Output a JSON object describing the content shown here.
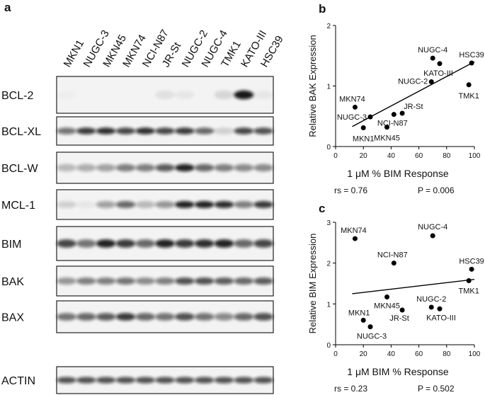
{
  "panel_labels": [
    "a",
    "b",
    "c"
  ],
  "blot": {
    "cell_lines": [
      "MKN1",
      "NUGC-3",
      "MKN45",
      "MKN74",
      "NCI-N87",
      "JR-St",
      "NUGC-2",
      "NUGC-4",
      "TMK1",
      "KATO-III",
      "HSC39"
    ],
    "proteins": [
      "BCL-2",
      "BCL-XL",
      "BCL-W",
      "MCL-1",
      "BIM",
      "BAK",
      "BAX",
      "ACTIN"
    ]
  },
  "chart_data": [
    {
      "type": "scatter",
      "xlabel": "1 μM % BIM Response",
      "ylabel": "Relative BAK Expression",
      "stats": [
        "rs = 0.76",
        "P = 0.006"
      ],
      "x": [
        20,
        25,
        37,
        14,
        42,
        48,
        69,
        70,
        96,
        75,
        98
      ],
      "values": [
        0.31,
        0.49,
        0.32,
        0.65,
        0.53,
        0.55,
        1.07,
        1.46,
        1.02,
        1.37,
        1.38
      ],
      "point_labels": [
        "MKN1",
        "NUGC-3",
        "MKN45",
        "MKN74",
        "NCI-N87",
        "JR-St",
        "NUGC-2",
        "NUGC-4",
        "TMK1",
        "KATO-III",
        "HSC39"
      ],
      "color": "#000000",
      "fit": {
        "x": [
          12,
          100
        ],
        "y": [
          0.33,
          1.4
        ]
      },
      "xlim": [
        0,
        100
      ],
      "xticks": [
        0,
        20,
        40,
        60,
        80,
        100
      ],
      "ylim": [
        0,
        2
      ],
      "yticks": [
        0,
        1,
        2
      ]
    },
    {
      "type": "scatter",
      "xlabel": "1 μM BIM % Response",
      "ylabel": "Relative BIM Expression",
      "stats": [
        "rs = 0.23",
        "P = 0.502"
      ],
      "x": [
        20,
        25,
        37,
        14,
        42,
        48,
        69,
        70,
        96,
        75,
        98
      ],
      "values": [
        0.6,
        0.44,
        1.17,
        2.6,
        2.0,
        0.85,
        0.92,
        2.67,
        1.57,
        0.88,
        1.85
      ],
      "point_labels": [
        "MKN1",
        "NUGC-3",
        "MKN45",
        "MKN74",
        "NCI-N87",
        "JR-St",
        "NUGC-2",
        "NUGC-4",
        "TMK1",
        "KATO-III",
        "HSC39"
      ],
      "color": "#000000",
      "fit": {
        "x": [
          12,
          100
        ],
        "y": [
          1.25,
          1.6
        ]
      },
      "xlim": [
        0,
        100
      ],
      "xticks": [
        0,
        20,
        40,
        60,
        80,
        100
      ],
      "ylim": [
        0,
        3
      ],
      "yticks": [
        0,
        1,
        2,
        3
      ]
    }
  ]
}
